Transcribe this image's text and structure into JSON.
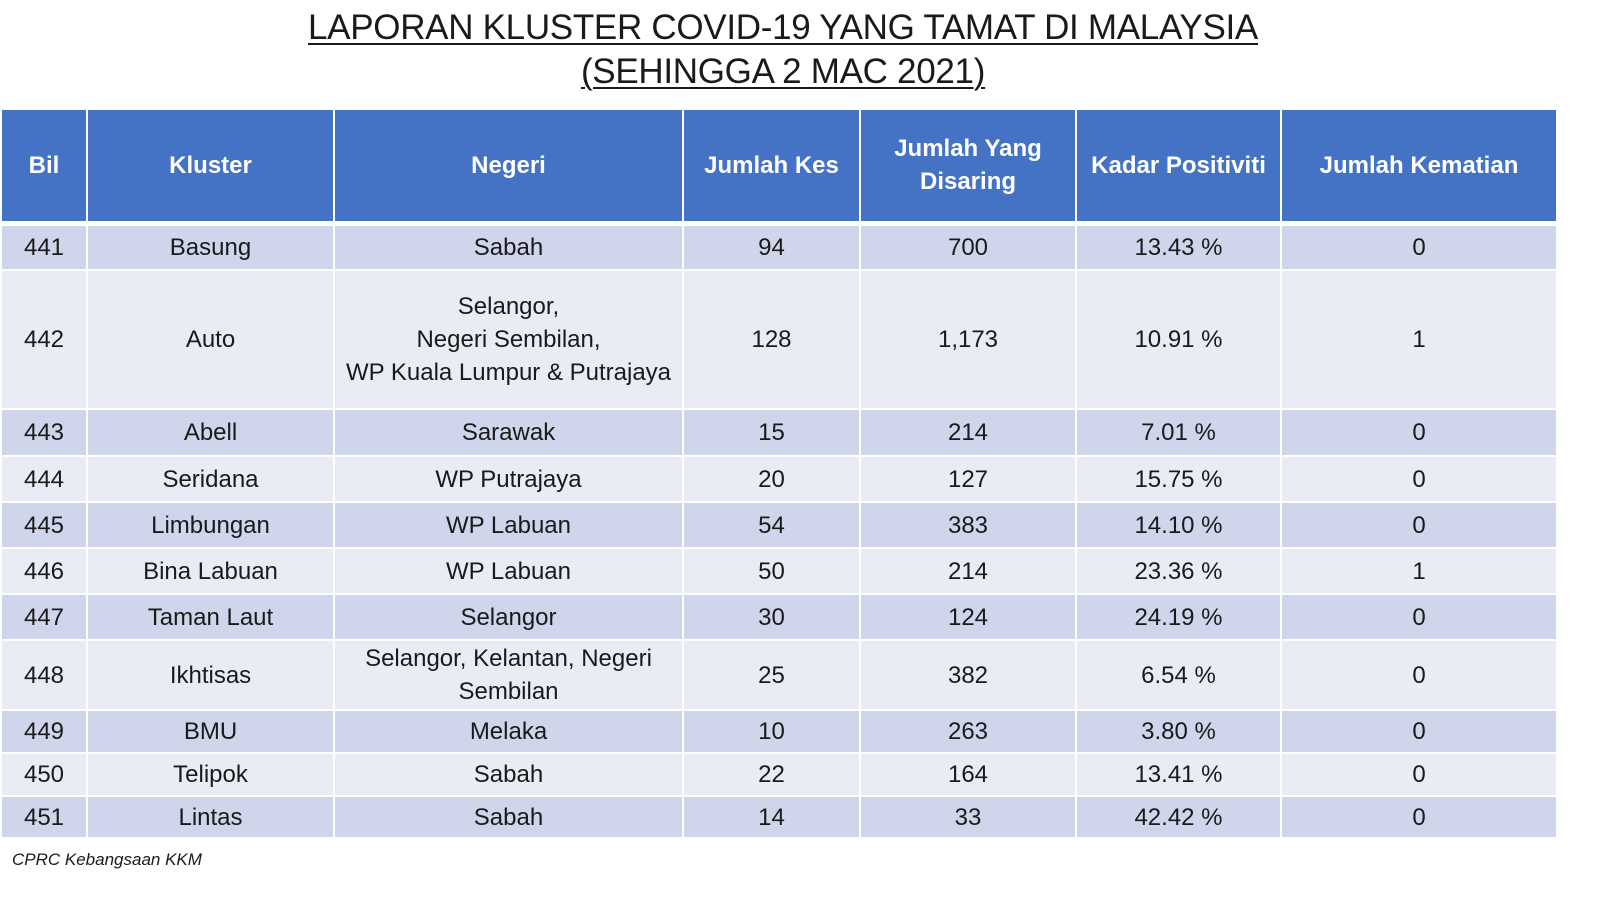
{
  "title": {
    "line1": "LAPORAN KLUSTER COVID-19 YANG TAMAT DI MALAYSIA",
    "line2": "(SEHINGGA 2 MAC 2021)"
  },
  "table": {
    "headers": [
      "Bil",
      "Kluster",
      "Negeri",
      "Jumlah Kes",
      "Jumlah Yang Disaring",
      "Kadar Positiviti",
      "Jumlah Kematian"
    ],
    "rows": [
      {
        "bil": "441",
        "kluster": "Basung",
        "negeri": [
          "Sabah"
        ],
        "kes": "94",
        "disaring": "700",
        "positiviti": "13.43 %",
        "kematian": "0"
      },
      {
        "bil": "442",
        "kluster": "Auto",
        "negeri": [
          "Selangor,",
          "Negeri Sembilan,",
          "WP Kuala Lumpur & Putrajaya"
        ],
        "kes": "128",
        "disaring": "1,173",
        "positiviti": "10.91 %",
        "kematian": "1"
      },
      {
        "bil": "443",
        "kluster": "Abell",
        "negeri": [
          "Sarawak"
        ],
        "kes": "15",
        "disaring": "214",
        "positiviti": "7.01 %",
        "kematian": "0"
      },
      {
        "bil": "444",
        "kluster": "Seridana",
        "negeri": [
          "WP Putrajaya"
        ],
        "kes": "20",
        "disaring": "127",
        "positiviti": "15.75 %",
        "kematian": "0"
      },
      {
        "bil": "445",
        "kluster": "Limbungan",
        "negeri": [
          "WP Labuan"
        ],
        "kes": "54",
        "disaring": "383",
        "positiviti": "14.10 %",
        "kematian": "0"
      },
      {
        "bil": "446",
        "kluster": "Bina Labuan",
        "negeri": [
          "WP Labuan"
        ],
        "kes": "50",
        "disaring": "214",
        "positiviti": "23.36 %",
        "kematian": "1"
      },
      {
        "bil": "447",
        "kluster": "Taman Laut",
        "negeri": [
          "Selangor"
        ],
        "kes": "30",
        "disaring": "124",
        "positiviti": "24.19 %",
        "kematian": "0"
      },
      {
        "bil": "448",
        "kluster": "Ikhtisas",
        "negeri": [
          "Selangor, Kelantan, Negeri",
          "Sembilan"
        ],
        "kes": "25",
        "disaring": "382",
        "positiviti": "6.54 %",
        "kematian": "0"
      },
      {
        "bil": "449",
        "kluster": "BMU",
        "negeri": [
          "Melaka"
        ],
        "kes": "10",
        "disaring": "263",
        "positiviti": "3.80 %",
        "kematian": "0"
      },
      {
        "bil": "450",
        "kluster": "Telipok",
        "negeri": [
          "Sabah"
        ],
        "kes": "22",
        "disaring": "164",
        "positiviti": "13.41 %",
        "kematian": "0"
      },
      {
        "bil": "451",
        "kluster": "Lintas",
        "negeri": [
          "Sabah"
        ],
        "kes": "14",
        "disaring": "33",
        "positiviti": "42.42 %",
        "kematian": "0"
      }
    ]
  },
  "footer": "CPRC Kebangsaan KKM",
  "colors": {
    "header_bg": "#4472c4",
    "row_dark": "#cfd5ea",
    "row_light": "#e9ebf5"
  }
}
